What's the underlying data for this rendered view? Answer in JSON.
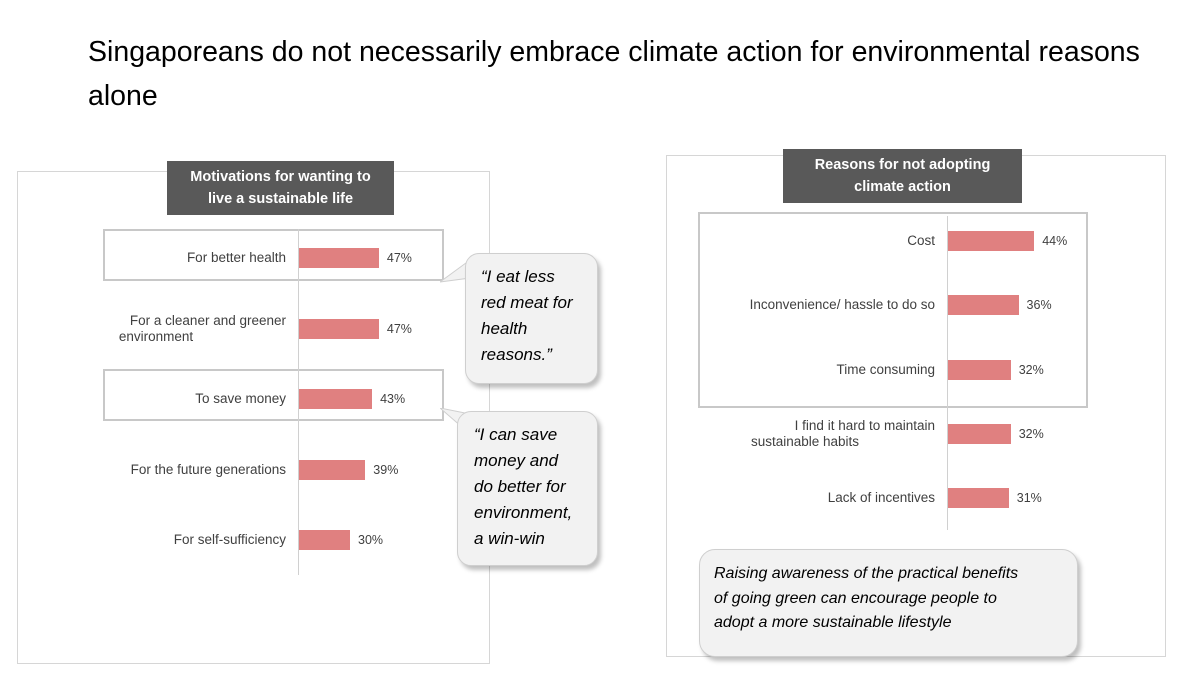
{
  "title": "Singaporeans do not necessarily embrace climate action for environmental reasons alone",
  "chart_data": [
    {
      "type": "bar",
      "orientation": "horizontal",
      "title": "Motivations for wanting to live a sustainable life",
      "categories": [
        "For better health",
        "For a cleaner and greener environment",
        "To save money",
        "For the future generations",
        "For self-sufficiency"
      ],
      "values": [
        47,
        47,
        43,
        39,
        30
      ],
      "labels": [
        "47%",
        "47%",
        "43%",
        "39%",
        "30%"
      ],
      "highlighted": [
        "For better health",
        "To save money"
      ],
      "bar_color": "#e08080",
      "grid": false
    },
    {
      "type": "bar",
      "orientation": "horizontal",
      "title": "Reasons for not adopting climate action",
      "categories": [
        "Cost",
        "Inconvenience/ hassle to do so",
        "Time consuming",
        "I find it hard to maintain sustainable habits",
        "Lack of incentives"
      ],
      "values": [
        44,
        36,
        32,
        32,
        31
      ],
      "labels": [
        "44%",
        "36%",
        "32%",
        "32%",
        "31%"
      ],
      "highlighted": [
        "Cost",
        "Inconvenience/ hassle to do so",
        "Time consuming"
      ],
      "bar_color": "#e08080",
      "grid": false
    }
  ],
  "left": {
    "header_line1": "Motivations for wanting to",
    "header_line2": "live a sustainable life",
    "cat_line1": [
      "For better health",
      "For a cleaner and greener",
      "To save money",
      "For the future generations",
      "For self-sufficiency"
    ],
    "cat_line2": [
      "",
      "environment",
      "",
      "",
      ""
    ],
    "quote1": [
      "“I eat less",
      "red meat for",
      "health",
      "reasons.”"
    ],
    "quote2": [
      "“I can save",
      "money and",
      "do better for",
      "environment,",
      "a win-win"
    ]
  },
  "right": {
    "header_line1": "Reasons for not adopting",
    "header_line2": "climate action",
    "cat_line1": [
      "Cost",
      "Inconvenience/ hassle to do so",
      "Time consuming",
      "I find it hard to maintain",
      "Lack of incentives"
    ],
    "cat_line2": [
      "",
      "",
      "",
      "sustainable habits",
      ""
    ],
    "callout": [
      "Raising awareness of the practical benefits",
      "of going green can encourage people to",
      "adopt a more sustainable lifestyle"
    ]
  }
}
